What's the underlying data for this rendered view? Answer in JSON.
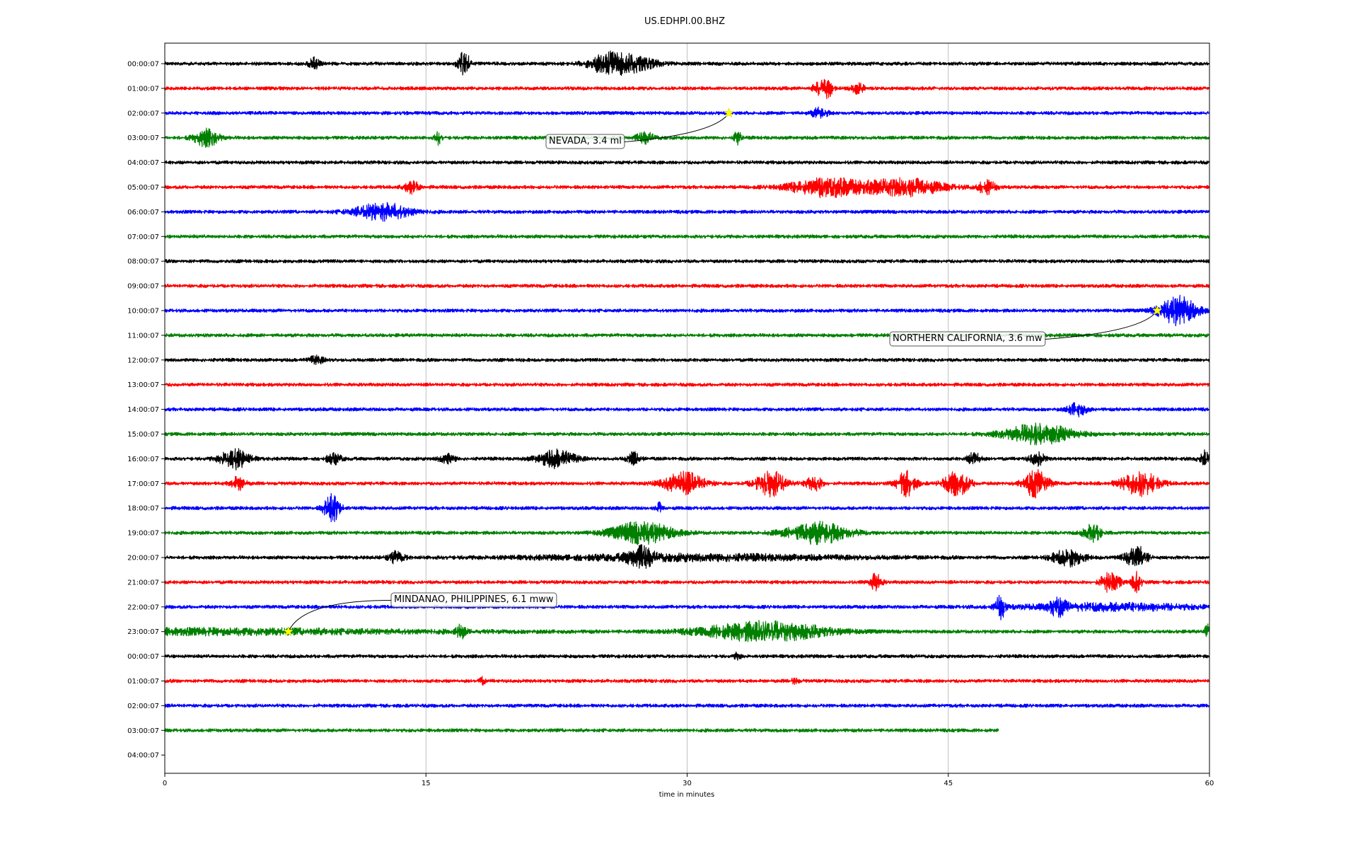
{
  "chart_data": {
    "type": "line",
    "title": "US.EDHPI.00.BHZ",
    "xlabel": "time in minutes",
    "xlim": [
      0,
      60
    ],
    "x_ticks": [
      0,
      15,
      30,
      45,
      60
    ],
    "x_tick_labels": [
      "0",
      "15",
      "30",
      "45",
      "60"
    ],
    "grid": "vertical",
    "row_colors": [
      "#000000",
      "#ff0000",
      "#0000ff",
      "#008000"
    ],
    "rows": [
      {
        "label": "00:00:07",
        "end_minute": 60,
        "events": [
          [
            8.6,
            8,
            0.35
          ],
          [
            17.2,
            16,
            0.4
          ],
          [
            25.3,
            10,
            1.2
          ],
          [
            26.7,
            12,
            1.6
          ]
        ]
      },
      {
        "label": "01:00:07",
        "end_minute": 60,
        "events": [
          [
            37.6,
            9,
            0.4
          ],
          [
            38.1,
            12,
            0.3
          ],
          [
            39.8,
            7,
            0.4
          ]
        ]
      },
      {
        "label": "02:00:07",
        "end_minute": 60,
        "events": [
          [
            37.6,
            7,
            0.5
          ]
        ]
      },
      {
        "label": "03:00:07",
        "end_minute": 60,
        "events": [
          [
            2.4,
            12,
            0.8
          ],
          [
            15.7,
            9,
            0.2
          ],
          [
            27.6,
            7,
            0.6
          ],
          [
            32.9,
            11,
            0.2
          ]
        ]
      },
      {
        "label": "04:00:07",
        "end_minute": 60,
        "events": []
      },
      {
        "label": "05:00:07",
        "end_minute": 60,
        "events": [
          [
            14.2,
            8,
            0.5
          ],
          [
            38.0,
            13,
            2.3
          ],
          [
            42.5,
            12,
            2.5
          ],
          [
            47.2,
            9,
            0.6
          ]
        ]
      },
      {
        "label": "06:00:07",
        "end_minute": 60,
        "events": [
          [
            12.5,
            12,
            1.8
          ]
        ]
      },
      {
        "label": "07:00:07",
        "end_minute": 60,
        "events": []
      },
      {
        "label": "08:00:07",
        "end_minute": 60,
        "events": []
      },
      {
        "label": "09:00:07",
        "end_minute": 60,
        "events": []
      },
      {
        "label": "10:00:07",
        "end_minute": 60,
        "events": [
          [
            58.2,
            20,
            1.2
          ]
        ]
      },
      {
        "label": "11:00:07",
        "end_minute": 60,
        "events": []
      },
      {
        "label": "12:00:07",
        "end_minute": 60,
        "events": [
          [
            8.7,
            5,
            0.5
          ]
        ]
      },
      {
        "label": "13:00:07",
        "end_minute": 60,
        "events": []
      },
      {
        "label": "14:00:07",
        "end_minute": 60,
        "events": [
          [
            52.4,
            9,
            0.6
          ]
        ]
      },
      {
        "label": "15:00:07",
        "end_minute": 60,
        "events": [
          [
            50.2,
            14,
            2.2
          ]
        ]
      },
      {
        "label": "16:00:07",
        "end_minute": 60,
        "events": [
          [
            4.0,
            14,
            0.9
          ],
          [
            9.7,
            7,
            0.5
          ],
          [
            16.2,
            7,
            0.5
          ],
          [
            22.5,
            12,
            1.2
          ],
          [
            26.9,
            9,
            0.4
          ],
          [
            46.5,
            10,
            0.4
          ],
          [
            50.1,
            9,
            0.5
          ],
          [
            59.8,
            12,
            0.4
          ]
        ]
      },
      {
        "label": "17:00:07",
        "end_minute": 60,
        "events": [
          [
            4.2,
            9,
            0.5
          ],
          [
            29.8,
            16,
            1.3
          ],
          [
            34.8,
            17,
            1.0
          ],
          [
            37.3,
            11,
            0.5
          ],
          [
            42.6,
            17,
            0.6
          ],
          [
            45.5,
            17,
            0.8
          ],
          [
            50.0,
            19,
            0.8
          ],
          [
            56.0,
            17,
            1.2
          ]
        ]
      },
      {
        "label": "18:00:07",
        "end_minute": 60,
        "events": [
          [
            9.6,
            20,
            0.5
          ],
          [
            28.4,
            7,
            0.2
          ]
        ]
      },
      {
        "label": "19:00:07",
        "end_minute": 60,
        "events": [
          [
            27.4,
            15,
            2.0
          ],
          [
            37.5,
            15,
            2.0
          ],
          [
            53.3,
            12,
            0.6
          ]
        ]
      },
      {
        "label": "20:00:07",
        "end_minute": 60,
        "events": [
          [
            13.3,
            8,
            0.5
          ],
          [
            27.3,
            13,
            0.8
          ],
          [
            30.3,
            4,
            10.5
          ],
          [
            51.9,
            12,
            1.0
          ],
          [
            55.8,
            16,
            0.7
          ]
        ]
      },
      {
        "label": "21:00:07",
        "end_minute": 60,
        "events": [
          [
            40.8,
            12,
            0.4
          ],
          [
            54.3,
            14,
            0.6
          ],
          [
            55.8,
            14,
            0.3
          ]
        ]
      },
      {
        "label": "22:00:07",
        "end_minute": 60,
        "events": [
          [
            48.0,
            17,
            0.3
          ],
          [
            51.3,
            11,
            0.5
          ],
          [
            54.3,
            5,
            5.7
          ]
        ]
      },
      {
        "label": "23:00:07",
        "end_minute": 60,
        "events": [
          [
            0.3,
            4,
            17.0
          ],
          [
            17.0,
            9,
            0.3
          ],
          [
            34.5,
            14,
            4.0
          ],
          [
            59.9,
            10,
            0.2
          ]
        ]
      },
      {
        "label": "00:00:07",
        "end_minute": 60,
        "events": [
          [
            32.9,
            5,
            0.2
          ]
        ]
      },
      {
        "label": "01:00:07",
        "end_minute": 60,
        "events": [
          [
            18.2,
            5,
            0.2
          ],
          [
            36.2,
            5,
            0.2
          ]
        ]
      },
      {
        "label": "02:00:07",
        "end_minute": 60,
        "events": []
      },
      {
        "label": "03:00:07",
        "end_minute": 47.9,
        "events": []
      },
      {
        "label": "04:00:07",
        "end_minute": 0,
        "events": []
      }
    ],
    "annotations": [
      {
        "text": "NEVADA, 3.4 ml",
        "row": 2,
        "minute": 32.4,
        "marker_color": "#ffff00"
      },
      {
        "text": "NORTHERN CALIFORNIA, 3.6 mw",
        "row": 10,
        "minute": 57.0,
        "marker_color": "#ffff00"
      },
      {
        "text": "MINDANAO, PHILIPPINES, 6.1 mww",
        "row": 23,
        "minute": 7.1,
        "marker_color": "#ffff00"
      }
    ]
  }
}
